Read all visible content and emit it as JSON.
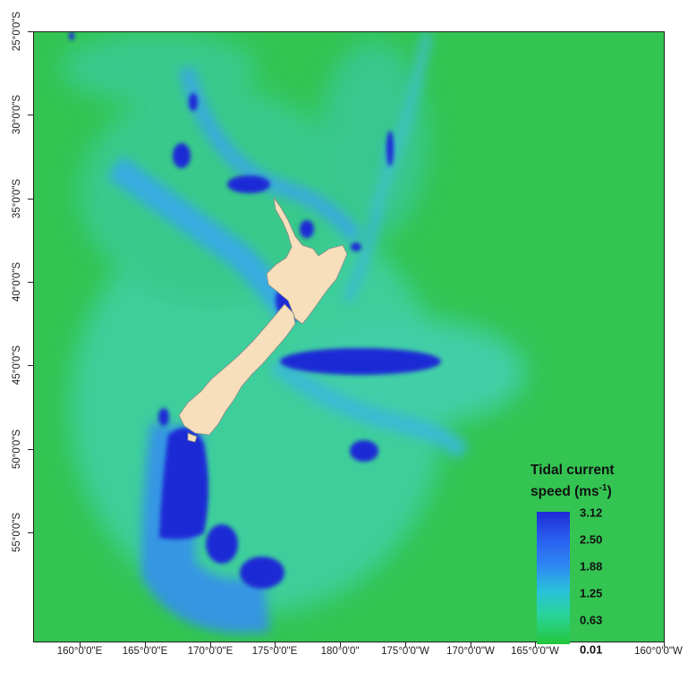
{
  "map": {
    "latitude_labels": [
      "25°0'0\"S",
      "30°0'0\"S",
      "35°0'0\"S",
      "40°0'0\"S",
      "45°0'0\"S",
      "50°0'0\"S",
      "55°0'0\"S"
    ],
    "longitude_labels": [
      "160°0'0\"E",
      "165°0'0\"E",
      "170°0'0\"E",
      "175°0'0\"E",
      "180°0'0\"",
      "175°0'0\"W",
      "170°0'0\"W",
      "165°0'0\"W",
      "160°0'0\"W"
    ],
    "colors": {
      "ocean_low": "#23c63a",
      "ocean_mid": "#2ad49a",
      "current_mid": "#2f86f5",
      "current_high": "#1f2bd6",
      "land": "#f6dfba",
      "land_outline": "#8a8a8a"
    }
  },
  "legend": {
    "title_line1": "Tidal current",
    "title_line2": "speed (ms",
    "title_exp": "-1",
    "title_close": ")",
    "values": [
      "3.12",
      "2.50",
      "1.88",
      "1.25",
      "0.63",
      "0.01"
    ]
  }
}
